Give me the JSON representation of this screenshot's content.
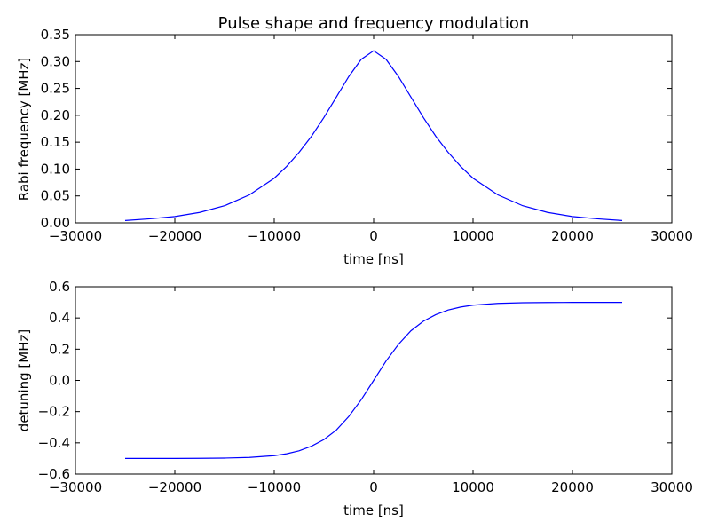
{
  "chart_data": [
    {
      "type": "line",
      "title": "Pulse shape and frequency modulation",
      "xlabel": "time [ns]",
      "ylabel": "Rabi frequency [MHz]",
      "xlim": [
        -30000,
        30000
      ],
      "ylim": [
        0,
        0.35
      ],
      "xticks": [
        "−30000",
        "−20000",
        "−10000",
        "0",
        "10000",
        "20000",
        "30000"
      ],
      "yticks": [
        "0.00",
        "0.05",
        "0.10",
        "0.15",
        "0.20",
        "0.25",
        "0.30",
        "0.35"
      ],
      "grid": false,
      "series": [
        {
          "color": "#0000ff",
          "x": [
            -25000,
            -22500,
            -20000,
            -17500,
            -15000,
            -12500,
            -10000,
            -8750,
            -7500,
            -6250,
            -5000,
            -3750,
            -2500,
            -1250,
            0,
            1250,
            2500,
            3750,
            5000,
            6250,
            7500,
            8750,
            10000,
            12500,
            15000,
            17500,
            20000,
            22500,
            25000
          ],
          "y": [
            0.0043,
            0.0075,
            0.0118,
            0.0194,
            0.0318,
            0.052,
            0.083,
            0.105,
            0.131,
            0.161,
            0.196,
            0.234,
            0.272,
            0.304,
            0.32,
            0.304,
            0.272,
            0.234,
            0.196,
            0.161,
            0.131,
            0.105,
            0.083,
            0.052,
            0.0318,
            0.0194,
            0.0118,
            0.0075,
            0.0043
          ]
        }
      ]
    },
    {
      "type": "line",
      "title": "",
      "xlabel": "time [ns]",
      "ylabel": "detuning [MHz]",
      "xlim": [
        -30000,
        30000
      ],
      "ylim": [
        -0.6,
        0.6
      ],
      "xticks": [
        "−30000",
        "−20000",
        "−10000",
        "0",
        "10000",
        "20000",
        "30000"
      ],
      "yticks": [
        "−0.6",
        "−0.4",
        "−0.2",
        "0.0",
        "0.2",
        "0.4",
        "0.6"
      ],
      "grid": false,
      "series": [
        {
          "color": "#0000ff",
          "x": [
            -25000,
            -22500,
            -20000,
            -17500,
            -15000,
            -12500,
            -10000,
            -8750,
            -7500,
            -6250,
            -5000,
            -3750,
            -2500,
            -1250,
            0,
            1250,
            2500,
            3750,
            5000,
            6250,
            7500,
            8750,
            10000,
            12500,
            15000,
            17500,
            20000,
            22500,
            25000
          ],
          "y": [
            -0.4999,
            -0.4998,
            -0.4996,
            -0.499,
            -0.4975,
            -0.4933,
            -0.482,
            -0.4698,
            -0.451,
            -0.421,
            -0.379,
            -0.318,
            -0.231,
            -0.124,
            0.0,
            0.124,
            0.231,
            0.318,
            0.379,
            0.421,
            0.451,
            0.4698,
            0.482,
            0.4933,
            0.4975,
            0.499,
            0.4996,
            0.4998,
            0.4999
          ]
        }
      ]
    }
  ]
}
